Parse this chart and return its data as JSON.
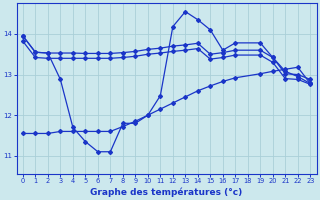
{
  "xlabel": "Graphe des températures (°c)",
  "background_color": "#cce8ed",
  "grid_color": "#aacfd8",
  "line_color": "#1a35c8",
  "xlim": [
    -0.5,
    23.5
  ],
  "ylim": [
    10.55,
    14.75
  ],
  "xticks": [
    0,
    1,
    2,
    3,
    4,
    5,
    6,
    7,
    8,
    9,
    10,
    11,
    12,
    13,
    14,
    15,
    16,
    17,
    18,
    19,
    20,
    21,
    22,
    23
  ],
  "yticks": [
    11,
    12,
    13,
    14
  ],
  "line1_x": [
    0,
    1,
    2,
    3,
    4,
    5,
    6,
    7,
    8,
    9,
    10,
    11,
    12,
    13,
    14,
    15,
    16,
    17,
    19,
    20,
    21,
    22,
    23
  ],
  "line1_y": [
    13.95,
    13.55,
    13.53,
    13.53,
    13.53,
    13.52,
    13.52,
    13.52,
    13.54,
    13.57,
    13.62,
    13.65,
    13.7,
    13.73,
    13.77,
    13.5,
    13.54,
    13.6,
    13.6,
    13.42,
    13.02,
    13.0,
    12.88
  ],
  "line2_x": [
    0,
    1,
    2,
    3,
    4,
    5,
    6,
    7,
    8,
    9,
    10,
    11,
    12,
    13,
    14,
    15,
    16,
    17,
    19,
    20,
    21,
    22,
    23
  ],
  "line2_y": [
    13.82,
    13.42,
    13.4,
    13.4,
    13.4,
    13.4,
    13.4,
    13.4,
    13.42,
    13.45,
    13.5,
    13.53,
    13.57,
    13.6,
    13.64,
    13.38,
    13.42,
    13.48,
    13.48,
    13.3,
    12.9,
    12.88,
    12.76
  ],
  "line3_x": [
    0,
    1,
    2,
    3,
    4,
    5,
    6,
    7,
    8,
    9,
    10,
    11,
    12,
    13,
    14,
    15,
    16,
    17,
    19,
    20,
    21,
    22,
    23
  ],
  "line3_y": [
    13.95,
    13.55,
    13.53,
    12.88,
    11.7,
    11.35,
    11.1,
    11.1,
    11.8,
    11.8,
    12.0,
    12.48,
    14.18,
    14.55,
    14.35,
    14.1,
    13.6,
    13.78,
    13.78,
    13.42,
    13.08,
    12.95,
    12.78
  ],
  "line4_x": [
    0,
    1,
    2,
    3,
    4,
    5,
    6,
    7,
    8,
    9,
    10,
    11,
    12,
    13,
    14,
    15,
    16,
    17,
    19,
    20,
    21,
    22,
    23
  ],
  "line4_y": [
    11.55,
    11.55,
    11.55,
    11.6,
    11.6,
    11.6,
    11.6,
    11.6,
    11.72,
    11.85,
    12.0,
    12.15,
    12.3,
    12.45,
    12.6,
    12.72,
    12.83,
    12.92,
    13.02,
    13.08,
    13.13,
    13.18,
    12.78
  ]
}
